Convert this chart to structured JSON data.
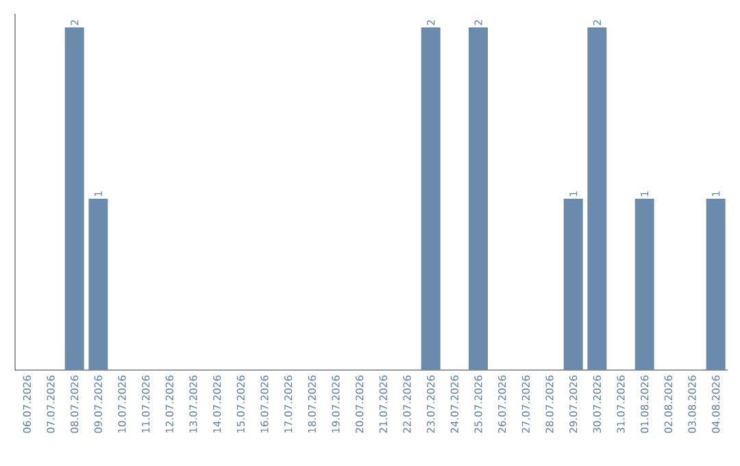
{
  "chart_data": {
    "type": "bar",
    "categories": [
      "06.07.2026",
      "07.07.2026",
      "08.07.2026",
      "09.07.2026",
      "10.07.2026",
      "11.07.2026",
      "12.07.2026",
      "13.07.2026",
      "14.07.2026",
      "15.07.2026",
      "16.07.2026",
      "17.07.2026",
      "18.07.2026",
      "19.07.2026",
      "20.07.2026",
      "21.07.2026",
      "22.07.2026",
      "23.07.2026",
      "24.07.2026",
      "25.07.2026",
      "26.07.2026",
      "27.07.2026",
      "28.07.2026",
      "29.07.2026",
      "30.07.2026",
      "31.07.2026",
      "01.08.2026",
      "02.08.2026",
      "03.08.2026",
      "04.08.2026"
    ],
    "values": [
      0,
      0,
      2,
      1,
      0,
      0,
      0,
      0,
      0,
      0,
      0,
      0,
      0,
      0,
      0,
      0,
      0,
      2,
      0,
      2,
      0,
      0,
      0,
      1,
      2,
      0,
      1,
      0,
      0,
      1
    ],
    "value_labels": [
      null,
      null,
      "2",
      "1",
      null,
      null,
      null,
      null,
      null,
      null,
      null,
      null,
      null,
      null,
      null,
      null,
      null,
      "2",
      null,
      "2",
      null,
      null,
      null,
      "1",
      "2",
      null,
      "1",
      null,
      null,
      "1"
    ],
    "color": "#6a8bab",
    "tick_labels": "x",
    "grid": false
  }
}
